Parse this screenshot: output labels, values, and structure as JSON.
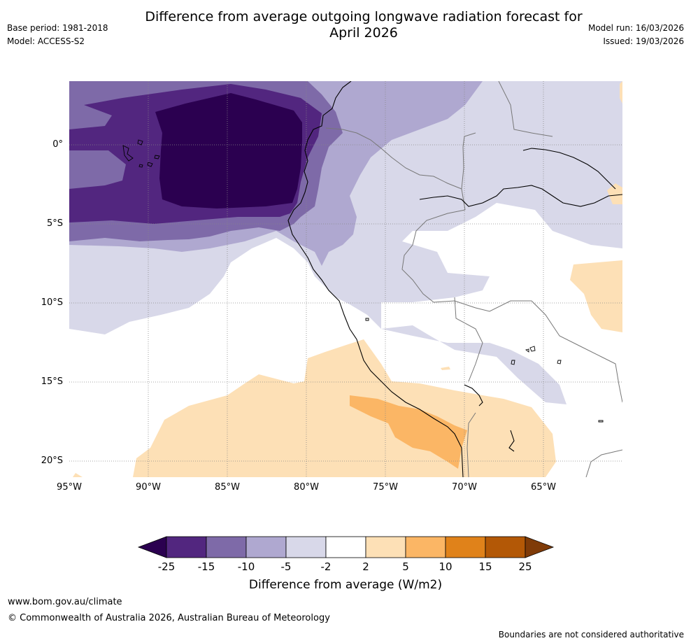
{
  "header": {
    "title_line1": "Difference from average outgoing longwave radiation forecast for",
    "title_line2": "April 2026",
    "base_period": "Base period: 1981-2018",
    "model": "Model: ACCESS-S2",
    "model_run": "Model run: 16/03/2026",
    "issued": "Issued: 19/03/2026"
  },
  "map": {
    "lat_labels": [
      "0°",
      "5°S",
      "10°S",
      "15°S",
      "20°S"
    ],
    "lon_labels": [
      "95°W",
      "90°W",
      "85°W",
      "80°W",
      "75°W",
      "70°W",
      "65°W"
    ],
    "colors": {
      "lt_m25": "#2b0050",
      "m25_m15": "#52267f",
      "m15_m10": "#7e6aa8",
      "m10_m5": "#afa8d0",
      "m5_m2": "#d8d8e9",
      "m2_2": "#ffffff",
      "p2_p5": "#fde0b6",
      "p5_p10": "#fbb665",
      "p10_p15": "#e0821a",
      "p15_p25": "#b35806",
      "gt_p25": "#7f3b08"
    }
  },
  "colorbar": {
    "ticks": [
      "-25",
      "-15",
      "-10",
      "-5",
      "-2",
      "2",
      "5",
      "10",
      "15",
      "25"
    ],
    "label": "Difference from average (W/m2)"
  },
  "footer": {
    "url": "www.bom.gov.au/climate",
    "copyright": "© Commonwealth of Australia 2026, Australian Bureau of Meteorology",
    "disclaimer": "Boundaries are not considered authoritative"
  }
}
